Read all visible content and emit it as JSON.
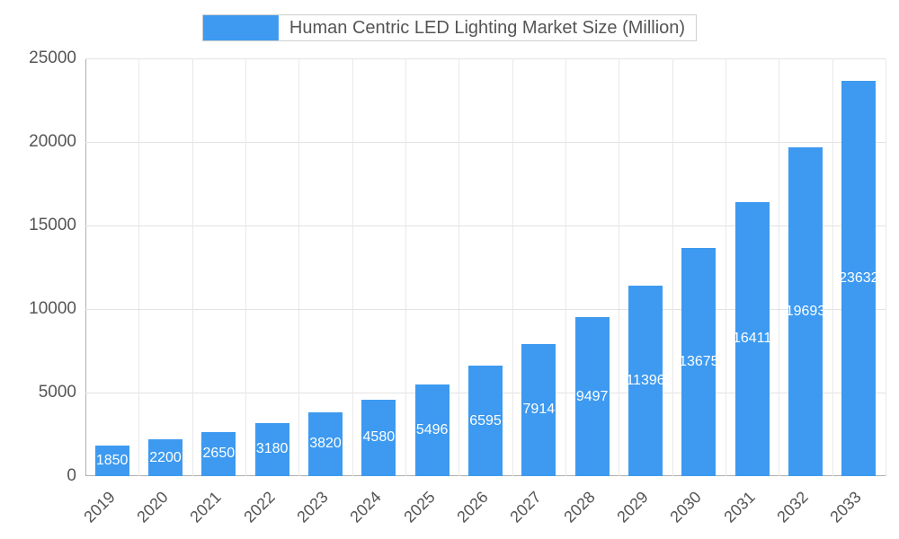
{
  "title": "Human Centric LED Lighting Market Size (Million)",
  "colors": {
    "bar": "#3d9af0",
    "grid_h": "#e3e3e3",
    "grid_v": "#e8e8e8",
    "axis": "#b0b0b0",
    "text": "#555555",
    "value_label": "#ffffff"
  },
  "chart_data": {
    "type": "bar",
    "categories": [
      "2019",
      "2020",
      "2021",
      "2022",
      "2023",
      "2024",
      "2025",
      "2026",
      "2027",
      "2028",
      "2029",
      "2030",
      "2031",
      "2032",
      "2033"
    ],
    "values": [
      1850,
      2200,
      2650,
      3180,
      3820,
      4580,
      5496,
      6595,
      7914,
      9497,
      11396,
      13675,
      16411,
      19693,
      23632
    ],
    "title": "Human Centric LED Lighting Market Size (Million)",
    "xlabel": "",
    "ylabel": "",
    "ylim": [
      0,
      25000
    ],
    "yticks": [
      0,
      5000,
      10000,
      15000,
      20000,
      25000
    ],
    "grid": true,
    "legend_position": "top",
    "value_labels": "center"
  }
}
